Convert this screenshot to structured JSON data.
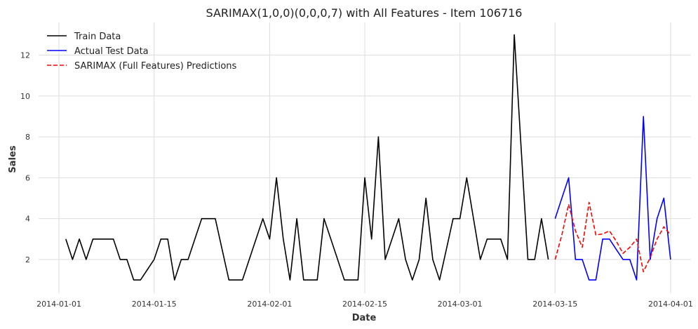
{
  "chart_data": {
    "type": "line",
    "title": "SARIMAX(1,0,0)(0,0,0,7) with All Features - Item 106716",
    "xlabel": "Date",
    "ylabel": "Sales",
    "x_ticks": [
      "2014-01-01",
      "2014-01-15",
      "2014-02-01",
      "2014-02-15",
      "2014-03-01",
      "2014-03-15",
      "2014-04-01"
    ],
    "y_ticks": [
      "2",
      "4",
      "6",
      "8",
      "10",
      "12"
    ],
    "x_range": [
      "2013-12-29",
      "2014-04-04"
    ],
    "ylim": [
      0.35,
      13.6
    ],
    "grid": true,
    "legend_position": "top-left",
    "series": [
      {
        "name": "Train Data",
        "color": "#000000",
        "style": "solid",
        "points": [
          [
            "2014-01-02",
            3
          ],
          [
            "2014-01-03",
            2
          ],
          [
            "2014-01-04",
            3
          ],
          [
            "2014-01-05",
            2
          ],
          [
            "2014-01-06",
            3
          ],
          [
            "2014-01-07",
            3
          ],
          [
            "2014-01-08",
            3
          ],
          [
            "2014-01-09",
            3
          ],
          [
            "2014-01-10",
            2
          ],
          [
            "2014-01-11",
            2
          ],
          [
            "2014-01-12",
            1
          ],
          [
            "2014-01-13",
            1
          ],
          [
            "2014-01-14",
            1.5
          ],
          [
            "2014-01-15",
            2
          ],
          [
            "2014-01-16",
            3
          ],
          [
            "2014-01-17",
            3
          ],
          [
            "2014-01-18",
            1
          ],
          [
            "2014-01-19",
            2
          ],
          [
            "2014-01-20",
            2
          ],
          [
            "2014-01-21",
            3
          ],
          [
            "2014-01-22",
            4
          ],
          [
            "2014-01-23",
            4
          ],
          [
            "2014-01-24",
            4
          ],
          [
            "2014-01-25",
            2.5
          ],
          [
            "2014-01-26",
            1
          ],
          [
            "2014-01-27",
            1
          ],
          [
            "2014-01-28",
            1
          ],
          [
            "2014-01-29",
            2
          ],
          [
            "2014-01-30",
            3
          ],
          [
            "2014-01-31",
            4
          ],
          [
            "2014-02-01",
            3
          ],
          [
            "2014-02-02",
            6
          ],
          [
            "2014-02-03",
            3
          ],
          [
            "2014-02-04",
            1
          ],
          [
            "2014-02-05",
            4
          ],
          [
            "2014-02-06",
            1
          ],
          [
            "2014-02-07",
            1
          ],
          [
            "2014-02-08",
            1
          ],
          [
            "2014-02-09",
            4
          ],
          [
            "2014-02-10",
            3
          ],
          [
            "2014-02-11",
            2
          ],
          [
            "2014-02-12",
            1
          ],
          [
            "2014-02-13",
            1
          ],
          [
            "2014-02-14",
            1
          ],
          [
            "2014-02-15",
            6
          ],
          [
            "2014-02-16",
            3
          ],
          [
            "2014-02-17",
            8
          ],
          [
            "2014-02-18",
            2
          ],
          [
            "2014-02-19",
            3
          ],
          [
            "2014-02-20",
            4
          ],
          [
            "2014-02-21",
            2
          ],
          [
            "2014-02-22",
            1
          ],
          [
            "2014-02-23",
            2
          ],
          [
            "2014-02-24",
            5
          ],
          [
            "2014-02-25",
            2
          ],
          [
            "2014-02-26",
            1
          ],
          [
            "2014-02-27",
            2.5
          ],
          [
            "2014-02-28",
            4
          ],
          [
            "2014-03-01",
            4
          ],
          [
            "2014-03-02",
            6
          ],
          [
            "2014-03-03",
            4
          ],
          [
            "2014-03-04",
            2
          ],
          [
            "2014-03-05",
            3
          ],
          [
            "2014-03-06",
            3
          ],
          [
            "2014-03-07",
            3
          ],
          [
            "2014-03-08",
            2
          ],
          [
            "2014-03-09",
            13
          ],
          [
            "2014-03-10",
            7.5
          ],
          [
            "2014-03-11",
            2
          ],
          [
            "2014-03-12",
            2
          ],
          [
            "2014-03-13",
            4
          ],
          [
            "2014-03-14",
            2
          ]
        ]
      },
      {
        "name": "Actual Test Data",
        "color": "#0000ff",
        "style": "solid",
        "points": [
          [
            "2014-03-15",
            4
          ],
          [
            "2014-03-16",
            5
          ],
          [
            "2014-03-17",
            6
          ],
          [
            "2014-03-18",
            2
          ],
          [
            "2014-03-19",
            2
          ],
          [
            "2014-03-20",
            1
          ],
          [
            "2014-03-21",
            1
          ],
          [
            "2014-03-22",
            3
          ],
          [
            "2014-03-23",
            3
          ],
          [
            "2014-03-24",
            2.5
          ],
          [
            "2014-03-25",
            2
          ],
          [
            "2014-03-26",
            2
          ],
          [
            "2014-03-27",
            1
          ],
          [
            "2014-03-28",
            9
          ],
          [
            "2014-03-29",
            2
          ],
          [
            "2014-03-30",
            4
          ],
          [
            "2014-03-31",
            5
          ],
          [
            "2014-04-01",
            2
          ]
        ]
      },
      {
        "name": "SARIMAX (Full Features) Predictions",
        "color": "#ff0000",
        "style": "dashed",
        "points": [
          [
            "2014-03-15",
            2
          ],
          [
            "2014-03-16",
            3.2
          ],
          [
            "2014-03-17",
            4.7
          ],
          [
            "2014-03-18",
            3.4
          ],
          [
            "2014-03-19",
            2.6
          ],
          [
            "2014-03-20",
            4.8
          ],
          [
            "2014-03-21",
            3.2
          ],
          [
            "2014-03-22",
            3.25
          ],
          [
            "2014-03-23",
            3.4
          ],
          [
            "2014-03-24",
            2.9
          ],
          [
            "2014-03-25",
            2.3
          ],
          [
            "2014-03-26",
            2.6
          ],
          [
            "2014-03-27",
            3.0
          ],
          [
            "2014-03-28",
            1.4
          ],
          [
            "2014-03-29",
            2.1
          ],
          [
            "2014-03-30",
            3.0
          ],
          [
            "2014-03-31",
            3.6
          ],
          [
            "2014-04-01",
            3.2
          ]
        ]
      }
    ]
  }
}
